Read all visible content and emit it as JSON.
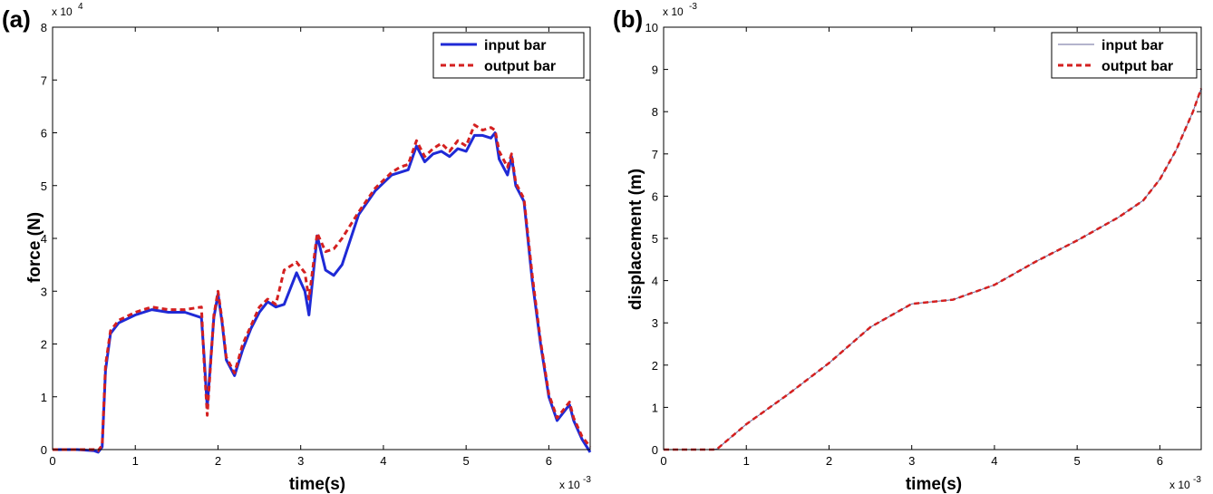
{
  "chart_data": [
    {
      "panel_label": "(a)",
      "type": "line",
      "title": "",
      "xlabel": "time(s)",
      "ylabel": "force (N)",
      "x_multiplier": "x 10",
      "x_exponent": "-3",
      "y_multiplier": "x 10",
      "y_exponent": "4",
      "xlim": [
        0,
        6.5
      ],
      "ylim": [
        0,
        8
      ],
      "xticks": [
        0,
        1,
        2,
        3,
        4,
        5,
        6
      ],
      "yticks": [
        0,
        1,
        2,
        3,
        4,
        5,
        6,
        7,
        8
      ],
      "grid": false,
      "legend": "top-right",
      "series": [
        {
          "name": "input bar",
          "color": "#1f2ad6",
          "style": "solid",
          "x": [
            0,
            0.3,
            0.5,
            0.55,
            0.6,
            0.64,
            0.7,
            0.8,
            1.0,
            1.2,
            1.4,
            1.6,
            1.8,
            1.83,
            1.87,
            1.95,
            2.0,
            2.05,
            2.1,
            2.2,
            2.3,
            2.4,
            2.5,
            2.6,
            2.7,
            2.8,
            2.95,
            3.05,
            3.1,
            3.2,
            3.3,
            3.4,
            3.5,
            3.7,
            3.9,
            4.0,
            4.1,
            4.2,
            4.3,
            4.4,
            4.5,
            4.6,
            4.7,
            4.8,
            4.9,
            5.0,
            5.1,
            5.2,
            5.3,
            5.35,
            5.4,
            5.5,
            5.55,
            5.6,
            5.7,
            5.8,
            5.9,
            6.0,
            6.1,
            6.2,
            6.25,
            6.3,
            6.4,
            6.5
          ],
          "values": [
            0.0,
            0.0,
            -0.02,
            -0.05,
            0.05,
            1.5,
            2.2,
            2.4,
            2.55,
            2.65,
            2.6,
            2.6,
            2.5,
            1.8,
            0.8,
            2.5,
            2.95,
            2.4,
            1.7,
            1.4,
            1.9,
            2.3,
            2.6,
            2.8,
            2.7,
            2.75,
            3.35,
            3.0,
            2.55,
            4.05,
            3.4,
            3.3,
            3.5,
            4.45,
            4.9,
            5.05,
            5.2,
            5.25,
            5.3,
            5.75,
            5.45,
            5.6,
            5.65,
            5.55,
            5.7,
            5.65,
            5.95,
            5.95,
            5.9,
            6.0,
            5.5,
            5.2,
            5.55,
            5.0,
            4.7,
            3.2,
            2.0,
            1.0,
            0.55,
            0.75,
            0.85,
            0.55,
            0.2,
            -0.05
          ]
        },
        {
          "name": "output bar",
          "color": "#d42020",
          "style": "dashed",
          "x": [
            0,
            0.3,
            0.5,
            0.55,
            0.6,
            0.64,
            0.7,
            0.8,
            1.0,
            1.2,
            1.4,
            1.6,
            1.8,
            1.83,
            1.87,
            1.95,
            2.0,
            2.05,
            2.1,
            2.2,
            2.3,
            2.4,
            2.5,
            2.6,
            2.7,
            2.8,
            2.95,
            3.05,
            3.1,
            3.2,
            3.3,
            3.4,
            3.5,
            3.7,
            3.9,
            4.0,
            4.1,
            4.2,
            4.3,
            4.4,
            4.5,
            4.6,
            4.7,
            4.8,
            4.9,
            5.0,
            5.1,
            5.2,
            5.3,
            5.35,
            5.4,
            5.5,
            5.55,
            5.6,
            5.7,
            5.8,
            5.9,
            6.0,
            6.1,
            6.2,
            6.25,
            6.3,
            6.4,
            6.5
          ],
          "values": [
            0.0,
            0.0,
            0.0,
            -0.02,
            0.08,
            1.6,
            2.25,
            2.45,
            2.6,
            2.7,
            2.65,
            2.65,
            2.7,
            1.7,
            0.65,
            2.55,
            3.0,
            2.45,
            1.75,
            1.45,
            2.0,
            2.35,
            2.7,
            2.85,
            2.75,
            3.4,
            3.55,
            3.35,
            2.85,
            4.1,
            3.75,
            3.8,
            4.0,
            4.5,
            4.95,
            5.1,
            5.25,
            5.35,
            5.4,
            5.85,
            5.55,
            5.7,
            5.8,
            5.65,
            5.85,
            5.75,
            6.15,
            6.05,
            6.1,
            6.05,
            5.65,
            5.35,
            5.6,
            5.05,
            4.75,
            3.3,
            2.05,
            1.05,
            0.6,
            0.8,
            0.9,
            0.6,
            0.25,
            0.05
          ]
        }
      ]
    },
    {
      "panel_label": "(b)",
      "type": "line",
      "title": "",
      "xlabel": "time(s)",
      "ylabel": "displacement (m)",
      "x_multiplier": "x 10",
      "x_exponent": "-3",
      "y_multiplier": "x 10",
      "y_exponent": "-3",
      "xlim": [
        0,
        6.5
      ],
      "ylim": [
        0,
        10
      ],
      "xticks": [
        0,
        1,
        2,
        3,
        4,
        5,
        6
      ],
      "yticks": [
        0,
        1,
        2,
        3,
        4,
        5,
        6,
        7,
        8,
        9,
        10
      ],
      "grid": false,
      "legend": "top-right",
      "series": [
        {
          "name": "input bar",
          "color": "#6a6a9a",
          "style": "solid",
          "x": [
            0,
            0.3,
            0.6,
            0.65,
            1.0,
            1.5,
            1.9,
            2.0,
            2.5,
            3.0,
            3.5,
            4.0,
            4.5,
            5.0,
            5.5,
            5.8,
            6.0,
            6.2,
            6.4,
            6.5
          ],
          "values": [
            0.0,
            0.0,
            0.0,
            0.02,
            0.6,
            1.3,
            1.9,
            2.05,
            2.9,
            3.45,
            3.55,
            3.9,
            4.45,
            4.95,
            5.5,
            5.9,
            6.4,
            7.1,
            8.0,
            8.55
          ]
        },
        {
          "name": "output bar",
          "color": "#d42020",
          "style": "dashed",
          "x": [
            0,
            0.3,
            0.6,
            0.65,
            1.0,
            1.5,
            1.9,
            2.0,
            2.5,
            3.0,
            3.5,
            4.0,
            4.5,
            5.0,
            5.5,
            5.8,
            6.0,
            6.2,
            6.4,
            6.5
          ],
          "values": [
            0.0,
            0.0,
            0.0,
            0.02,
            0.6,
            1.3,
            1.9,
            2.05,
            2.9,
            3.45,
            3.55,
            3.9,
            4.45,
            4.95,
            5.5,
            5.9,
            6.4,
            7.1,
            8.0,
            8.55
          ]
        }
      ]
    }
  ]
}
